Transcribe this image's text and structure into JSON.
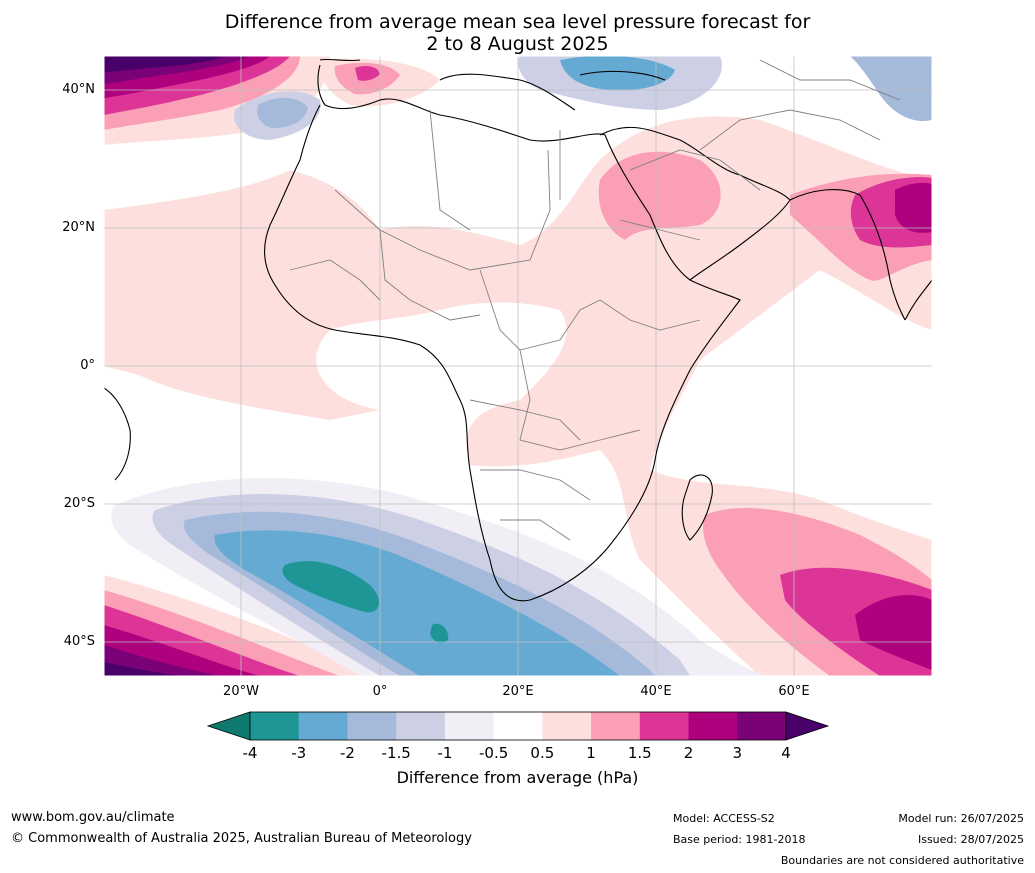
{
  "title": {
    "line1": "Difference from average mean sea level pressure forecast for",
    "line2": "2 to 8 August 2025"
  },
  "map": {
    "lat_labels": [
      "40°N",
      "20°N",
      "0°",
      "20°S",
      "40°S"
    ],
    "lon_labels": [
      "20°W",
      "0°",
      "20°E",
      "40°E",
      "60°E"
    ],
    "land_color": "#ffffff",
    "border_color": "#808080",
    "coast_color": "#000000",
    "grid_color": "#c0c0c0"
  },
  "colorbar": {
    "label": "Difference from average (hPa)",
    "ticks": [
      "-4",
      "-3",
      "-2",
      "-1.5",
      "-1",
      "-0.5",
      "0.5",
      "1",
      "1.5",
      "2",
      "3",
      "4"
    ],
    "colors": [
      "#0f7a6e",
      "#1e9696",
      "#64aad2",
      "#a5b9da",
      "#cdd0e5",
      "#f1eef6",
      "#ffffff",
      "#fde0dd",
      "#fa9fb5",
      "#dd3497",
      "#ae017e",
      "#7a0177",
      "#49006a"
    ]
  },
  "footer": {
    "website": "www.bom.gov.au/climate",
    "copyright": "© Commonwealth of Australia 2025, Australian Bureau of Meteorology",
    "model": "Model: ACCESS-S2",
    "base_period": "Base period: 1981-2018",
    "model_run": "Model run: 26/07/2025",
    "issued": "Issued: 28/07/2025",
    "disclaimer": "Boundaries are not considered authoritative"
  }
}
